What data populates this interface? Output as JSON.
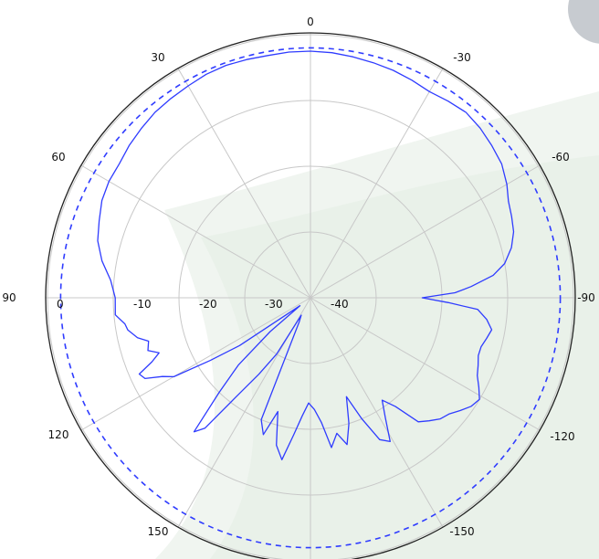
{
  "chart_data": {
    "type": "line",
    "coordinate_system": "polar",
    "title": "",
    "angle_ticks": [
      "0",
      "30",
      "60",
      "90",
      "120",
      "150",
      "-30",
      "-60",
      "-90",
      "-120",
      "-150"
    ],
    "radial_ticks": [
      "0",
      "-10",
      "-20",
      "-30",
      "-40"
    ],
    "radial_range_db": [
      -40,
      0
    ],
    "angle_direction": "positive angles on the left, 0 at top",
    "grid": true,
    "colors": {
      "trace": "#2f3cff",
      "grid": "#c8c8c8",
      "outer_ring": "#222222"
    },
    "series": [
      {
        "style": "dashed",
        "points": [
          [
            0,
            -2
          ],
          [
            30,
            -2
          ],
          [
            60,
            -2
          ],
          [
            90,
            -2
          ],
          [
            120,
            -2
          ],
          [
            150,
            -2
          ],
          [
            180,
            -2
          ],
          [
            -150,
            -2
          ],
          [
            -120,
            -2
          ],
          [
            -90,
            -2
          ],
          [
            -60,
            -2
          ],
          [
            -30,
            -2
          ]
        ]
      },
      {
        "style": "solid",
        "points": [
          [
            0,
            -2.5
          ],
          [
            5,
            -2.5
          ],
          [
            10,
            -2.6
          ],
          [
            15,
            -2.5
          ],
          [
            20,
            -2.4
          ],
          [
            25,
            -2.5
          ],
          [
            30,
            -2.8
          ],
          [
            35,
            -3.0
          ],
          [
            40,
            -3.2
          ],
          [
            45,
            -3.6
          ],
          [
            50,
            -4.0
          ],
          [
            55,
            -4.5
          ],
          [
            60,
            -4.6
          ],
          [
            65,
            -5.0
          ],
          [
            70,
            -5.8
          ],
          [
            75,
            -6.5
          ],
          [
            80,
            -7.8
          ],
          [
            85,
            -9.5
          ],
          [
            90,
            -10.3
          ],
          [
            95,
            -10.2
          ],
          [
            98,
            -11.5
          ],
          [
            100,
            -11.8
          ],
          [
            103,
            -13.0
          ],
          [
            105,
            -14.5
          ],
          [
            108,
            -14.0
          ],
          [
            110,
            -15.5
          ],
          [
            112,
            -14.0
          ],
          [
            114,
            -11.5
          ],
          [
            116,
            -12.0
          ],
          [
            118,
            -14.5
          ],
          [
            120,
            -16.0
          ],
          [
            122,
            -22.0
          ],
          [
            124,
            -27.0
          ],
          [
            127,
            -38.0
          ],
          [
            130,
            -32.0
          ],
          [
            133,
            -25.0
          ],
          [
            136,
            -20.0
          ],
          [
            139,
            -13.0
          ],
          [
            141,
            -14.5
          ],
          [
            143,
            -21.0
          ],
          [
            146,
            -26.0
          ],
          [
            149,
            -30.0
          ],
          [
            152,
            -37.0
          ],
          [
            155,
            -36.0
          ],
          [
            158,
            -20.0
          ],
          [
            161,
            -18.0
          ],
          [
            164,
            -22.0
          ],
          [
            167,
            -17.0
          ],
          [
            170,
            -15.0
          ],
          [
            173,
            -19.0
          ],
          [
            176,
            -22.0
          ],
          [
            179,
            -24.0
          ],
          [
            182,
            -23.0
          ],
          [
            185,
            -21.0
          ],
          [
            188,
            -17.0
          ],
          [
            191,
            -19.0
          ],
          [
            194,
            -17.0
          ],
          [
            197,
            -20.0
          ],
          [
            200,
            -24.0
          ],
          [
            203,
            -20.0
          ],
          [
            206,
            -16.0
          ],
          [
            209,
            -15.0
          ],
          [
            212,
            -18.5
          ],
          [
            215,
            -21.0
          ],
          [
            218,
            -19.0
          ],
          [
            221,
            -15.0
          ],
          [
            224,
            -14.0
          ],
          [
            227,
            -13.0
          ],
          [
            230,
            -12.5
          ],
          [
            233,
            -11.5
          ],
          [
            236,
            -10.5
          ],
          [
            239,
            -10.0
          ],
          [
            242,
            -11.0
          ],
          [
            245,
            -12.0
          ],
          [
            248,
            -12.5
          ],
          [
            251,
            -13.0
          ],
          [
            254,
            -13.0
          ],
          [
            257,
            -12.5
          ],
          [
            260,
            -12.0
          ],
          [
            263,
            -13.0
          ],
          [
            266,
            -14.5
          ],
          [
            268,
            -19.0
          ],
          [
            270,
            -23.0
          ],
          [
            272,
            -18.0
          ],
          [
            274,
            -15.5
          ],
          [
            277,
            -12.0
          ],
          [
            280,
            -10.0
          ],
          [
            284,
            -8.5
          ],
          [
            288,
            -7.5
          ],
          [
            292,
            -7.0
          ],
          [
            296,
            -6.5
          ],
          [
            300,
            -5.5
          ],
          [
            305,
            -4.5
          ],
          [
            310,
            -4.0
          ],
          [
            315,
            -3.5
          ],
          [
            320,
            -3.2
          ],
          [
            325,
            -3.5
          ],
          [
            330,
            -3.8
          ],
          [
            335,
            -3.5
          ],
          [
            340,
            -3.2
          ],
          [
            345,
            -3.0
          ],
          [
            350,
            -2.8
          ],
          [
            355,
            -2.6
          ],
          [
            360,
            -2.5
          ]
        ]
      }
    ]
  }
}
